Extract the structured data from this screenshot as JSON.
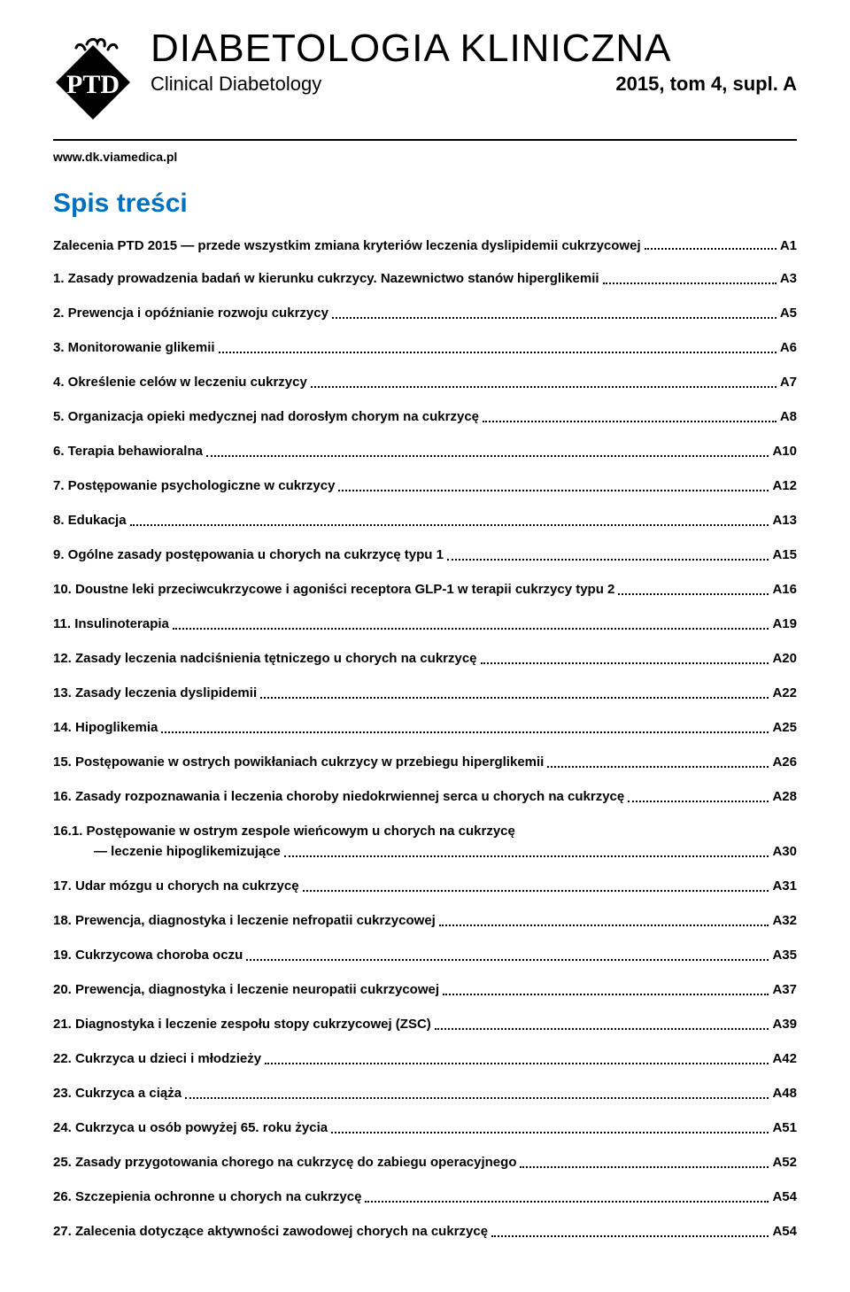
{
  "header": {
    "journal_title": "DIABETOLOGIA KLINICZNA",
    "journal_subtitle": "Clinical Diabetology",
    "issue_info": "2015, tom 4, supl. A",
    "url": "www.dk.viamedica.pl",
    "logo_text": "PTD"
  },
  "toc": {
    "heading": "Spis treści",
    "intro_label": "Zalecenia PTD 2015 — przede wszystkim zmiana kryteriów leczenia dyslipidemii cukrzycowej",
    "intro_page": "A1",
    "items": [
      {
        "label": "1. Zasady prowadzenia badań w kierunku cukrzycy. Nazewnictwo stanów hiperglikemii",
        "page": "A3"
      },
      {
        "label": "2. Prewencja i opóźnianie rozwoju cukrzycy",
        "page": "A5"
      },
      {
        "label": "3. Monitorowanie glikemii",
        "page": "A6"
      },
      {
        "label": "4. Określenie celów w leczeniu cukrzycy",
        "page": "A7"
      },
      {
        "label": "5. Organizacja opieki medycznej nad dorosłym chorym na cukrzycę",
        "page": "A8"
      },
      {
        "label": "6. Terapia behawioralna",
        "page": "A10"
      },
      {
        "label": "7. Postępowanie psychologiczne w cukrzycy",
        "page": "A12"
      },
      {
        "label": "8. Edukacja",
        "page": "A13"
      },
      {
        "label": "9. Ogólne zasady postępowania u chorych na cukrzycę typu 1",
        "page": "A15"
      },
      {
        "label": "10. Doustne leki przeciwcukrzycowe i agoniści receptora GLP-1 w terapii cukrzycy typu 2",
        "page": "A16"
      },
      {
        "label": "11. Insulinoterapia",
        "page": "A19"
      },
      {
        "label": "12. Zasady leczenia nadciśnienia tętniczego u chorych na cukrzycę",
        "page": "A20"
      },
      {
        "label": "13. Zasady leczenia dyslipidemii",
        "page": "A22"
      },
      {
        "label": "14. Hipoglikemia",
        "page": "A25"
      },
      {
        "label": "15. Postępowanie w ostrych powikłaniach cukrzycy w przebiegu hiperglikemii",
        "page": "A26"
      },
      {
        "label": "16. Zasady rozpoznawania i leczenia choroby niedokrwiennej serca u chorych na cukrzycę",
        "page": "A28"
      },
      {
        "label_line1": "16.1. Postępowanie w ostrym zespole wieńcowym u chorych na cukrzycę",
        "label_line2": "— leczenie hipoglikemizujące",
        "page": "A30",
        "sub": true
      },
      {
        "label": "17. Udar mózgu u chorych na cukrzycę",
        "page": "A31"
      },
      {
        "label": "18. Prewencja, diagnostyka i leczenie nefropatii cukrzycowej",
        "page": "A32"
      },
      {
        "label": "19. Cukrzycowa choroba oczu",
        "page": "A35"
      },
      {
        "label": "20. Prewencja, diagnostyka i leczenie neuropatii cukrzycowej",
        "page": "A37"
      },
      {
        "label": "21. Diagnostyka i leczenie zespołu stopy cukrzycowej (ZSC)",
        "page": "A39"
      },
      {
        "label": "22. Cukrzyca u dzieci i młodzieży",
        "page": "A42"
      },
      {
        "label": "23. Cukrzyca a ciąża",
        "page": "A48"
      },
      {
        "label": "24. Cukrzyca u osób powyżej 65. roku życia",
        "page": "A51"
      },
      {
        "label": "25. Zasady przygotowania chorego na cukrzycę do zabiegu operacyjnego",
        "page": "A52"
      },
      {
        "label": "26. Szczepienia ochronne u chorych na cukrzycę",
        "page": "A54"
      },
      {
        "label": "27. Zalecenia dotyczące aktywności zawodowej chorych na cukrzycę",
        "page": "A54"
      }
    ]
  },
  "colors": {
    "link_blue": "#0070c0",
    "text": "#000000",
    "background": "#ffffff"
  }
}
